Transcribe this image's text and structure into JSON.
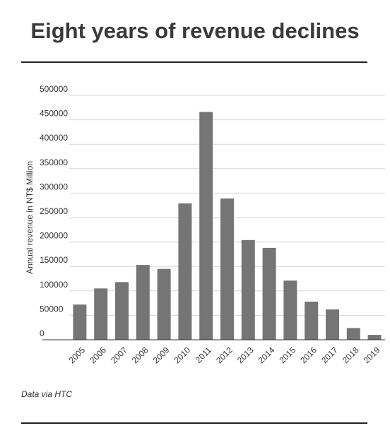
{
  "title": "Eight years of revenue declines",
  "source_note": "Data via HTC",
  "chart_data": {
    "type": "bar",
    "title": "Eight years of revenue declines",
    "xlabel": "",
    "ylabel": "Annual revenue in NT$ Million",
    "categories": [
      "2005",
      "2006",
      "2007",
      "2008",
      "2009",
      "2010",
      "2011",
      "2012",
      "2013",
      "2014",
      "2015",
      "2016",
      "2017",
      "2018",
      "2019"
    ],
    "values": [
      72000,
      105000,
      118000,
      153000,
      145000,
      279000,
      466000,
      289000,
      204000,
      188000,
      121000,
      78000,
      62000,
      24000,
      10000
    ],
    "ylim": [
      0,
      500000
    ],
    "yticks": [
      "0",
      "50000",
      "100000",
      "150000",
      "200000",
      "250000",
      "300000",
      "350000",
      "400000",
      "450000",
      "500000"
    ],
    "grid": true,
    "bar_color": "#757575",
    "legend": "none"
  }
}
